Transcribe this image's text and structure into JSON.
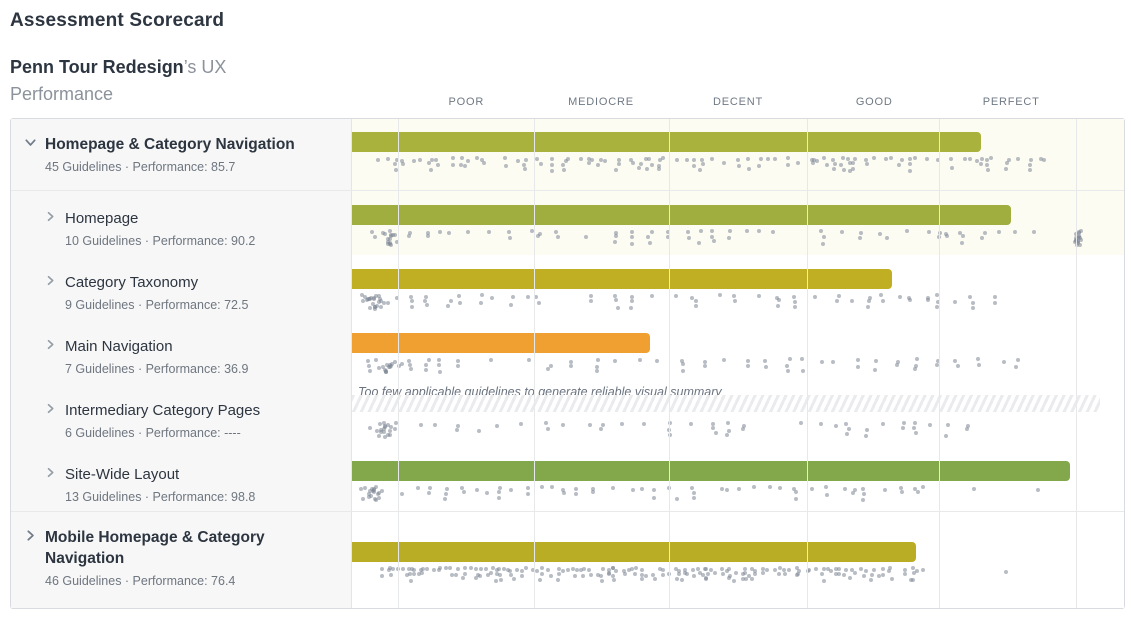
{
  "header": {
    "title": "Assessment Scorecard"
  },
  "subtitle": {
    "project": "Penn Tour Redesign",
    "suffix": "’s UX",
    "line2": "Performance"
  },
  "scale": {
    "labels": [
      {
        "text": "POOR",
        "pct": 14.9
      },
      {
        "text": "MEDIOCRE",
        "pct": 32.3
      },
      {
        "text": "DECENT",
        "pct": 50.0
      },
      {
        "text": "GOOD",
        "pct": 67.6
      },
      {
        "text": "PERFECT",
        "pct": 85.3
      }
    ]
  },
  "grid": {
    "lines_pct": [
      5.9,
      23.6,
      41.0,
      58.9,
      76.1,
      93.8
    ]
  },
  "no_data_message": "Too few applicable guidelines to generate reliable visual summary",
  "chart_data": {
    "type": "bar",
    "categories": [
      "Homepage & Category Navigation",
      "Homepage",
      "Category Taxonomy",
      "Main Navigation",
      "Intermediary Category Pages",
      "Site-Wide Layout",
      "Mobile Homepage & Category Navigation"
    ],
    "values": [
      85.7,
      90.2,
      72.5,
      36.9,
      null,
      98.8,
      76.4
    ],
    "title": "Penn Tour Redesign’s UX Performance",
    "xlabel": "",
    "ylabel": "Performance",
    "xlim": [
      0,
      100
    ],
    "scale_bands": [
      "POOR",
      "MEDIOCRE",
      "DECENT",
      "GOOD",
      "PERFECT"
    ]
  },
  "rows": [
    {
      "id": "homepage-category-navigation",
      "level": "group1",
      "expanded": true,
      "title": "Homepage & Category Navigation",
      "meta": "45 Guidelines · Performance: 85.7",
      "bar": {
        "color": "#a9b23c",
        "width_pct": 81.5
      },
      "tint": "#fdfcf3",
      "dots": {
        "seed": 11,
        "start": 3,
        "end": 90,
        "step_min": 0.5,
        "step_max": 2.0,
        "max_stack": 3,
        "blobs": []
      }
    },
    {
      "id": "homepage",
      "level": "child",
      "expanded": false,
      "title": "Homepage",
      "meta": "10 Guidelines · Performance: 90.2",
      "bar": {
        "color": "#9fae3f",
        "width_pct": 85.4
      },
      "tint": "#fdfcf3",
      "dots": {
        "seed": 22,
        "start": 2.5,
        "end": 89,
        "step_min": 1.0,
        "step_max": 3.0,
        "max_stack": 3,
        "blobs": [
          {
            "pct": 4.5,
            "count": 12,
            "spread": 1.4
          },
          {
            "pct": 93.8,
            "count": 18,
            "spread": 0.6
          }
        ]
      }
    },
    {
      "id": "category-taxonomy",
      "level": "child",
      "expanded": false,
      "title": "Category Taxonomy",
      "meta": "9 Guidelines · Performance: 72.5",
      "bar": {
        "color": "#c0af22",
        "width_pct": 69.9
      },
      "tint": "#ffffff",
      "dots": {
        "seed": 33,
        "start": 1,
        "end": 84,
        "step_min": 1.2,
        "step_max": 3.2,
        "max_stack": 3,
        "blobs": [
          {
            "pct": 2.8,
            "count": 20,
            "spread": 2.0
          }
        ]
      }
    },
    {
      "id": "main-navigation",
      "level": "child",
      "expanded": false,
      "title": "Main Navigation",
      "meta": "7 Guidelines · Performance: 36.9",
      "bar": {
        "color": "#f0a030",
        "width_pct": 38.6
      },
      "tint": "#ffffff",
      "dots": {
        "seed": 44,
        "start": 2,
        "end": 90,
        "step_min": 1.5,
        "step_max": 3.5,
        "max_stack": 3,
        "blobs": [
          {
            "pct": 4.5,
            "count": 16,
            "spread": 2.0
          }
        ]
      }
    },
    {
      "id": "intermediary-category-pages",
      "level": "child",
      "expanded": false,
      "no_data": true,
      "title": "Intermediary Category Pages",
      "meta": "6 Guidelines · Performance: ----",
      "bar": null,
      "tint": "#ffffff",
      "dots": {
        "seed": 55,
        "start": 2,
        "end": 82,
        "step_min": 1.5,
        "step_max": 3.5,
        "max_stack": 3,
        "blobs": [
          {
            "pct": 4,
            "count": 14,
            "spread": 1.6
          }
        ]
      }
    },
    {
      "id": "site-wide-layout",
      "level": "child",
      "expanded": false,
      "title": "Site-Wide Layout",
      "meta": "13 Guidelines · Performance: 98.8",
      "bar": {
        "color": "#83a84b",
        "width_pct": 93.0
      },
      "tint": "#ffffff",
      "dots": {
        "seed": 66,
        "start": 1,
        "end": 75,
        "step_min": 0.9,
        "step_max": 2.6,
        "max_stack": 3,
        "blobs": [
          {
            "pct": 2.5,
            "count": 16,
            "spread": 1.8
          },
          {
            "pct": 80.5,
            "count": 1,
            "spread": 0.3
          },
          {
            "pct": 88.5,
            "count": 1,
            "spread": 0.3
          }
        ]
      }
    },
    {
      "id": "mobile-homepage-category-navigation",
      "level": "group2",
      "expanded": false,
      "title": "Mobile Homepage & Category Navigation",
      "meta": "46 Guidelines · Performance: 76.4",
      "bar": {
        "color": "#b9ad26",
        "width_pct": 73.1
      },
      "tint": "#ffffff",
      "dots": {
        "seed": 77,
        "start": 3.5,
        "end": 74,
        "step_min": 0.3,
        "step_max": 0.9,
        "max_stack": 3,
        "blobs": [
          {
            "pct": 84.5,
            "count": 1,
            "spread": 0.3
          }
        ]
      }
    }
  ]
}
